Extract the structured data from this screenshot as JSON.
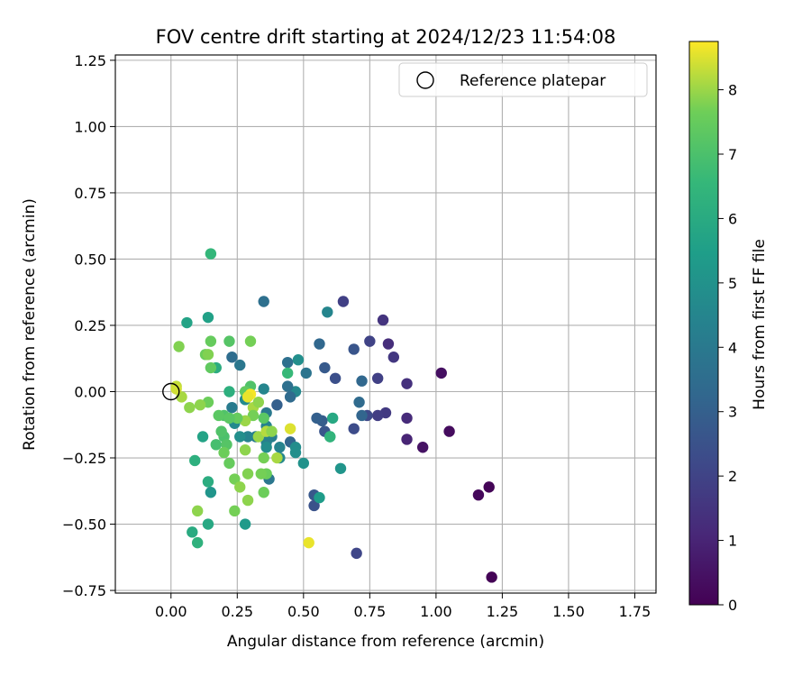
{
  "chart_data": {
    "type": "scatter",
    "title": "FOV centre drift starting at 2024/12/23 11:54:08",
    "xlabel": "Angular distance from reference (arcmin)",
    "ylabel": "Rotation from reference (arcmin)",
    "xlim": [
      -0.21,
      1.83
    ],
    "ylim": [
      -0.76,
      1.27
    ],
    "xticks": [
      0.0,
      0.25,
      0.5,
      0.75,
      1.0,
      1.25,
      1.5,
      1.75
    ],
    "xtick_labels": [
      "0.00",
      "0.25",
      "0.50",
      "0.75",
      "1.00",
      "1.25",
      "1.50",
      "1.75"
    ],
    "yticks": [
      -0.75,
      -0.5,
      -0.25,
      0.0,
      0.25,
      0.5,
      0.75,
      1.0,
      1.25
    ],
    "ytick_labels": [
      "−0.75",
      "−0.50",
      "−0.25",
      "0.00",
      "0.25",
      "0.50",
      "0.75",
      "1.00",
      "1.25"
    ],
    "grid": true,
    "colormap": "viridis",
    "colorbar": {
      "label": "Hours from first FF file",
      "min": 0,
      "max": 8.75,
      "ticks": [
        0,
        1,
        2,
        3,
        4,
        5,
        6,
        7,
        8
      ],
      "tick_labels": [
        "0",
        "1",
        "2",
        "3",
        "4",
        "5",
        "6",
        "7",
        "8"
      ]
    },
    "legend": {
      "placement": "top-right",
      "entries": [
        {
          "label": "Reference platepar",
          "marker": "open-circle"
        }
      ]
    },
    "reference_point": {
      "x": 0.0,
      "y": 0.0
    },
    "points": [
      {
        "x": 1.21,
        "y": -0.7,
        "c": 0.05
      },
      {
        "x": 1.2,
        "y": -0.36,
        "c": 0.1
      },
      {
        "x": 1.16,
        "y": -0.39,
        "c": 0.2
      },
      {
        "x": 1.05,
        "y": -0.15,
        "c": 0.3
      },
      {
        "x": 1.02,
        "y": 0.07,
        "c": 0.4
      },
      {
        "x": 0.95,
        "y": -0.21,
        "c": 0.5
      },
      {
        "x": 0.89,
        "y": -0.18,
        "c": 1.0
      },
      {
        "x": 0.89,
        "y": -0.1,
        "c": 1.2
      },
      {
        "x": 0.89,
        "y": 0.03,
        "c": 1.4
      },
      {
        "x": 0.84,
        "y": 0.13,
        "c": 1.6
      },
      {
        "x": 0.82,
        "y": 0.18,
        "c": 1.3
      },
      {
        "x": 0.8,
        "y": 0.27,
        "c": 1.5
      },
      {
        "x": 0.81,
        "y": -0.08,
        "c": 1.7
      },
      {
        "x": 0.78,
        "y": 0.05,
        "c": 1.9
      },
      {
        "x": 0.78,
        "y": -0.09,
        "c": 1.8
      },
      {
        "x": 0.75,
        "y": 0.19,
        "c": 2.0
      },
      {
        "x": 0.74,
        "y": -0.09,
        "c": 2.2
      },
      {
        "x": 0.7,
        "y": -0.61,
        "c": 2.1
      },
      {
        "x": 0.69,
        "y": -0.14,
        "c": 2.3
      },
      {
        "x": 0.65,
        "y": 0.34,
        "c": 1.9
      },
      {
        "x": 0.62,
        "y": 0.05,
        "c": 2.4
      },
      {
        "x": 0.69,
        "y": 0.16,
        "c": 2.6
      },
      {
        "x": 0.72,
        "y": 0.04,
        "c": 3.3
      },
      {
        "x": 0.71,
        "y": -0.04,
        "c": 3.4
      },
      {
        "x": 0.72,
        "y": -0.09,
        "c": 3.2
      },
      {
        "x": 0.58,
        "y": 0.09,
        "c": 2.8
      },
      {
        "x": 0.58,
        "y": -0.15,
        "c": 2.6
      },
      {
        "x": 0.57,
        "y": -0.11,
        "c": 2.9
      },
      {
        "x": 0.55,
        "y": -0.1,
        "c": 3.0
      },
      {
        "x": 0.54,
        "y": -0.39,
        "c": 2.7
      },
      {
        "x": 0.54,
        "y": -0.43,
        "c": 2.5
      },
      {
        "x": 0.56,
        "y": 0.18,
        "c": 3.3
      },
      {
        "x": 0.59,
        "y": 0.3,
        "c": 4.5
      },
      {
        "x": 0.51,
        "y": 0.07,
        "c": 3.8
      },
      {
        "x": 0.48,
        "y": 0.12,
        "c": 4.9
      },
      {
        "x": 0.47,
        "y": 0.0,
        "c": 4.6
      },
      {
        "x": 0.44,
        "y": 0.11,
        "c": 3.6
      },
      {
        "x": 0.44,
        "y": 0.02,
        "c": 3.6
      },
      {
        "x": 0.45,
        "y": -0.02,
        "c": 3.4
      },
      {
        "x": 0.4,
        "y": -0.05,
        "c": 3.0
      },
      {
        "x": 0.45,
        "y": -0.19,
        "c": 3.2
      },
      {
        "x": 0.47,
        "y": -0.21,
        "c": 4.8
      },
      {
        "x": 0.47,
        "y": -0.23,
        "c": 4.9
      },
      {
        "x": 0.5,
        "y": -0.27,
        "c": 5.0
      },
      {
        "x": 0.56,
        "y": -0.4,
        "c": 5.4
      },
      {
        "x": 0.6,
        "y": -0.17,
        "c": 5.8
      },
      {
        "x": 0.61,
        "y": -0.1,
        "c": 5.9
      },
      {
        "x": 0.64,
        "y": -0.29,
        "c": 5.1
      },
      {
        "x": 0.44,
        "y": 0.07,
        "c": 6.6
      },
      {
        "x": 0.45,
        "y": -0.14,
        "c": 8.5
      },
      {
        "x": 0.52,
        "y": -0.57,
        "c": 8.6
      },
      {
        "x": 0.35,
        "y": 0.34,
        "c": 3.6
      },
      {
        "x": 0.35,
        "y": 0.01,
        "c": 4.5
      },
      {
        "x": 0.36,
        "y": -0.08,
        "c": 4.0
      },
      {
        "x": 0.36,
        "y": -0.13,
        "c": 4.4
      },
      {
        "x": 0.37,
        "y": -0.15,
        "c": 4.6
      },
      {
        "x": 0.38,
        "y": -0.17,
        "c": 4.2
      },
      {
        "x": 0.36,
        "y": -0.19,
        "c": 4.3
      },
      {
        "x": 0.36,
        "y": -0.21,
        "c": 4.8
      },
      {
        "x": 0.37,
        "y": -0.33,
        "c": 3.9
      },
      {
        "x": 0.41,
        "y": -0.21,
        "c": 4.4
      },
      {
        "x": 0.41,
        "y": -0.25,
        "c": 4.6
      },
      {
        "x": 0.32,
        "y": -0.17,
        "c": 4.1
      },
      {
        "x": 0.29,
        "y": -0.17,
        "c": 4.4
      },
      {
        "x": 0.26,
        "y": 0.1,
        "c": 3.9
      },
      {
        "x": 0.23,
        "y": 0.13,
        "c": 3.5
      },
      {
        "x": 0.23,
        "y": -0.06,
        "c": 4.1
      },
      {
        "x": 0.24,
        "y": -0.12,
        "c": 4.7
      },
      {
        "x": 0.26,
        "y": -0.17,
        "c": 4.9
      },
      {
        "x": 0.28,
        "y": -0.03,
        "c": 4.7
      },
      {
        "x": 0.28,
        "y": -0.5,
        "c": 5.3
      },
      {
        "x": 0.15,
        "y": -0.38,
        "c": 5.1
      },
      {
        "x": 0.14,
        "y": 0.28,
        "c": 5.6
      },
      {
        "x": 0.06,
        "y": 0.26,
        "c": 5.7
      },
      {
        "x": 0.15,
        "y": 0.52,
        "c": 6.5
      },
      {
        "x": 0.17,
        "y": 0.09,
        "c": 6.1
      },
      {
        "x": 0.22,
        "y": 0.0,
        "c": 6.2
      },
      {
        "x": 0.12,
        "y": -0.17,
        "c": 5.7
      },
      {
        "x": 0.14,
        "y": -0.34,
        "c": 6.1
      },
      {
        "x": 0.14,
        "y": -0.5,
        "c": 5.9
      },
      {
        "x": 0.08,
        "y": -0.53,
        "c": 6.0
      },
      {
        "x": 0.1,
        "y": -0.57,
        "c": 6.3
      },
      {
        "x": 0.09,
        "y": -0.26,
        "c": 6.2
      },
      {
        "x": 0.17,
        "y": -0.2,
        "c": 6.9
      },
      {
        "x": 0.2,
        "y": -0.17,
        "c": 7.0
      },
      {
        "x": 0.2,
        "y": -0.09,
        "c": 7.1
      },
      {
        "x": 0.18,
        "y": -0.09,
        "c": 7.3
      },
      {
        "x": 0.19,
        "y": -0.15,
        "c": 7.1
      },
      {
        "x": 0.21,
        "y": -0.2,
        "c": 7.2
      },
      {
        "x": 0.2,
        "y": -0.23,
        "c": 7.6
      },
      {
        "x": 0.22,
        "y": -0.27,
        "c": 7.5
      },
      {
        "x": 0.24,
        "y": -0.33,
        "c": 7.7
      },
      {
        "x": 0.26,
        "y": -0.36,
        "c": 7.9
      },
      {
        "x": 0.29,
        "y": -0.31,
        "c": 7.8
      },
      {
        "x": 0.28,
        "y": -0.22,
        "c": 7.9
      },
      {
        "x": 0.24,
        "y": -0.45,
        "c": 7.7
      },
      {
        "x": 0.29,
        "y": -0.41,
        "c": 7.9
      },
      {
        "x": 0.1,
        "y": -0.45,
        "c": 7.9
      },
      {
        "x": 0.15,
        "y": 0.19,
        "c": 7.5
      },
      {
        "x": 0.15,
        "y": 0.09,
        "c": 7.4
      },
      {
        "x": 0.13,
        "y": 0.14,
        "c": 7.6
      },
      {
        "x": 0.14,
        "y": 0.14,
        "c": 7.8
      },
      {
        "x": 0.22,
        "y": 0.19,
        "c": 7.2
      },
      {
        "x": 0.3,
        "y": 0.19,
        "c": 7.7
      },
      {
        "x": 0.03,
        "y": 0.17,
        "c": 7.8
      },
      {
        "x": 0.14,
        "y": -0.04,
        "c": 7.6
      },
      {
        "x": 0.11,
        "y": -0.05,
        "c": 7.9
      },
      {
        "x": 0.07,
        "y": -0.06,
        "c": 7.9
      },
      {
        "x": 0.04,
        "y": -0.02,
        "c": 8.1
      },
      {
        "x": 0.02,
        "y": 0.02,
        "c": 8.3
      },
      {
        "x": 0.02,
        "y": 0.01,
        "c": 8.4
      },
      {
        "x": 0.3,
        "y": 0.02,
        "c": 7.1
      },
      {
        "x": 0.28,
        "y": 0.0,
        "c": 7.4
      },
      {
        "x": 0.3,
        "y": -0.01,
        "c": 8.7
      },
      {
        "x": 0.29,
        "y": -0.02,
        "c": 8.6
      },
      {
        "x": 0.31,
        "y": -0.06,
        "c": 8.1
      },
      {
        "x": 0.33,
        "y": -0.04,
        "c": 7.9
      },
      {
        "x": 0.31,
        "y": -0.09,
        "c": 7.7
      },
      {
        "x": 0.28,
        "y": -0.11,
        "c": 8.0
      },
      {
        "x": 0.35,
        "y": -0.1,
        "c": 7.3
      },
      {
        "x": 0.33,
        "y": -0.17,
        "c": 8.0
      },
      {
        "x": 0.36,
        "y": -0.15,
        "c": 8.2
      },
      {
        "x": 0.36,
        "y": -0.31,
        "c": 7.6
      },
      {
        "x": 0.35,
        "y": -0.25,
        "c": 7.7
      },
      {
        "x": 0.35,
        "y": -0.38,
        "c": 7.6
      },
      {
        "x": 0.34,
        "y": -0.31,
        "c": 7.7
      },
      {
        "x": 0.4,
        "y": -0.25,
        "c": 8.1
      },
      {
        "x": 0.38,
        "y": -0.15,
        "c": 7.9
      },
      {
        "x": 0.6,
        "y": -0.17,
        "c": 6.4
      },
      {
        "x": 0.25,
        "y": -0.1,
        "c": 7.5
      },
      {
        "x": 0.22,
        "y": -0.1,
        "c": 7.3
      }
    ]
  }
}
